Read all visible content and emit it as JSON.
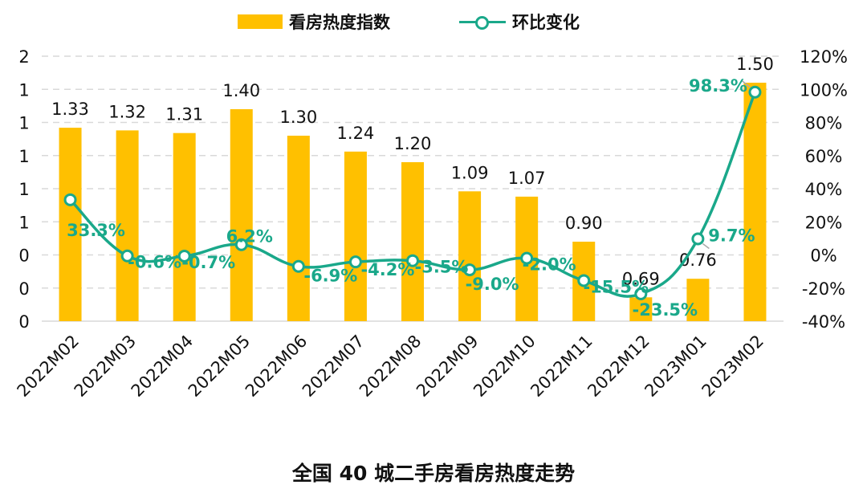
{
  "legend": {
    "bar_label": "看房热度指数",
    "line_label": "环比变化"
  },
  "caption": "全国 40 城二手房看房热度走势",
  "colors": {
    "bar": "#ffc000",
    "line": "#1aa88a",
    "grid": "#d9d9d9"
  },
  "chart_data": {
    "type": "bar+line",
    "title": "全国 40 城二手房看房热度走势",
    "categories": [
      "2022M02",
      "2022M03",
      "2022M04",
      "2022M05",
      "2022M06",
      "2022M07",
      "2022M08",
      "2022M09",
      "2022M10",
      "2022M11",
      "2022M12",
      "2023M01",
      "2023M02"
    ],
    "series": [
      {
        "name": "看房热度指数",
        "type": "bar",
        "axis": "left",
        "values": [
          1.33,
          1.32,
          1.31,
          1.4,
          1.3,
          1.24,
          1.2,
          1.09,
          1.07,
          0.9,
          0.69,
          0.76,
          1.5
        ],
        "labels": [
          "1.33",
          "1.32",
          "1.31",
          "1.40",
          "1.30",
          "1.24",
          "1.20",
          "1.09",
          "1.07",
          "0.90",
          "0.69",
          "0.76",
          "1.50"
        ]
      },
      {
        "name": "环比变化",
        "type": "line",
        "axis": "right",
        "values": [
          33.3,
          -0.6,
          -0.7,
          6.2,
          -6.9,
          -4.2,
          -3.5,
          -9.0,
          -2.0,
          -15.5,
          -23.5,
          9.7,
          98.3
        ],
        "labels": [
          "33.3%",
          "-0.6%",
          "-0.7%",
          "6.2%",
          "-6.9%",
          "-4.2%",
          "-3.5%",
          "-9.0%",
          "-2.0%",
          "-15.5%",
          "-23.5%",
          "9.7%",
          "98.3%"
        ]
      }
    ],
    "left_axis": {
      "ticks": [
        "0",
        "0",
        "0",
        "1",
        "1",
        "1",
        "1",
        "1",
        "2"
      ],
      "bar_value_range": [
        0.6,
        1.6
      ]
    },
    "right_axis": {
      "ylim": [
        -40,
        120
      ],
      "ticks": [
        "-40%",
        "-20%",
        "0%",
        "20%",
        "40%",
        "60%",
        "80%",
        "100%",
        "120%"
      ]
    },
    "grid": true,
    "legend_position": "top"
  }
}
